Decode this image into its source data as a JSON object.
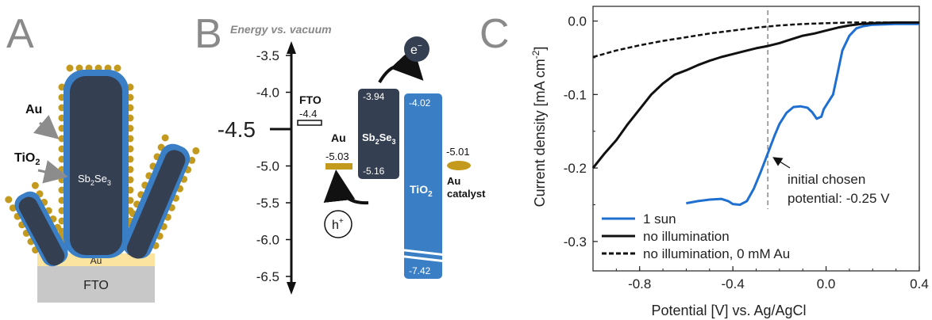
{
  "panels": {
    "a": "A",
    "b": "B",
    "c": "C"
  },
  "panel_a": {
    "au_label": "Au",
    "tio2_label": "TiO",
    "tio2_sub": "2",
    "sb_label": "Sb",
    "sb_sub1": "2",
    "sb_mid": "Se",
    "sb_sub2": "3",
    "au_layer": "Au",
    "fto": "FTO",
    "colors": {
      "rod": "#343f52",
      "shell": "#3a7ec6",
      "gold": "#c49a1e",
      "au_layer": "#fbe3a0",
      "fto": "#c8c8c8"
    }
  },
  "panel_b": {
    "axis_title": "Energy vs. vacuum",
    "ticks": [
      "-3.5",
      "-4.0",
      "-4.5",
      "-5.0",
      "-5.5",
      "-6.0",
      "-6.5"
    ],
    "fto_label": "FTO",
    "fto_value": "-4.4",
    "au_label": "Au",
    "au_value": "-5.03",
    "sb_cb": "-3.94",
    "sb_vb": "-5.16",
    "sb_label": "Sb",
    "sb_sub1": "2",
    "sb_mid": "Se",
    "sb_sub2": "3",
    "tio2_cb": "-4.02",
    "tio2_vb": "-7.42",
    "tio2_label": "TiO",
    "tio2_sub": "2",
    "cat_value": "-5.01",
    "cat_label1": "Au",
    "cat_label2": "catalyst",
    "electron": "e",
    "electron_sup": "−",
    "hole": "h",
    "hole_sup": "+",
    "colors": {
      "sb": "#343f52",
      "tio2": "#3a7ec6",
      "gold": "#c49a1e"
    }
  },
  "chart_data": {
    "type": "line",
    "xlabel": "Potential [V] vs. Ag/AgCl",
    "ylabel": "Current density [mA cm",
    "ylabel_sup": "-2",
    "ylabel_end": "]",
    "xlim": [
      -1.0,
      0.4
    ],
    "ylim": [
      -0.34,
      0.02
    ],
    "xticks": [
      -0.8,
      -0.4,
      0.0,
      0.4
    ],
    "xtick_labels": [
      "-0.8",
      "-0.4",
      "0.0",
      "0.4"
    ],
    "yticks": [
      0.0,
      -0.1,
      -0.2,
      -0.3
    ],
    "ytick_labels": [
      "0.0",
      "-0.1",
      "-0.2",
      "-0.3"
    ],
    "annotation": {
      "line1": "initial chosen",
      "line2": "potential: -0.25 V",
      "x": -0.25,
      "y": -0.18
    },
    "vline_x": -0.25,
    "legend": [
      "1 sun",
      "no illumination",
      "no illumination, 0 mM Au"
    ],
    "series": [
      {
        "name": "1 sun",
        "color": "#1f6fd1",
        "style": "solid",
        "x": [
          -0.6,
          -0.55,
          -0.5,
          -0.45,
          -0.42,
          -0.4,
          -0.37,
          -0.34,
          -0.31,
          -0.28,
          -0.25,
          -0.22,
          -0.2,
          -0.17,
          -0.14,
          -0.11,
          -0.08,
          -0.06,
          -0.04,
          -0.02,
          -0.01,
          0.01,
          0.03,
          0.05,
          0.07,
          0.1,
          0.13,
          0.16,
          0.2,
          0.3,
          0.4
        ],
        "y": [
          -0.248,
          -0.245,
          -0.243,
          -0.242,
          -0.245,
          -0.249,
          -0.25,
          -0.245,
          -0.228,
          -0.205,
          -0.18,
          -0.155,
          -0.14,
          -0.125,
          -0.117,
          -0.116,
          -0.118,
          -0.124,
          -0.133,
          -0.13,
          -0.12,
          -0.11,
          -0.1,
          -0.07,
          -0.04,
          -0.02,
          -0.01,
          -0.007,
          -0.005,
          -0.004,
          -0.004
        ]
      },
      {
        "name": "no illumination",
        "color": "#111111",
        "style": "solid",
        "x": [
          -1.0,
          -0.95,
          -0.9,
          -0.85,
          -0.8,
          -0.75,
          -0.7,
          -0.65,
          -0.6,
          -0.55,
          -0.5,
          -0.45,
          -0.4,
          -0.35,
          -0.3,
          -0.25,
          -0.2,
          -0.15,
          -0.1,
          -0.05,
          0.0,
          0.05,
          0.1,
          0.15,
          0.2,
          0.3,
          0.4
        ],
        "y": [
          -0.2,
          -0.18,
          -0.162,
          -0.14,
          -0.12,
          -0.1,
          -0.085,
          -0.073,
          -0.067,
          -0.06,
          -0.054,
          -0.049,
          -0.045,
          -0.041,
          -0.037,
          -0.034,
          -0.03,
          -0.025,
          -0.02,
          -0.017,
          -0.013,
          -0.009,
          -0.006,
          -0.004,
          -0.003,
          -0.002,
          -0.002
        ]
      },
      {
        "name": "no illumination, 0 mM Au",
        "color": "#111111",
        "style": "dashed",
        "x": [
          -1.0,
          -0.9,
          -0.8,
          -0.7,
          -0.6,
          -0.5,
          -0.4,
          -0.3,
          -0.2,
          -0.1,
          0.0,
          0.1,
          0.2,
          0.3,
          0.4
        ],
        "y": [
          -0.049,
          -0.04,
          -0.033,
          -0.027,
          -0.022,
          -0.017,
          -0.013,
          -0.009,
          -0.006,
          -0.004,
          -0.003,
          -0.002,
          -0.002,
          -0.002,
          -0.002
        ]
      }
    ]
  }
}
